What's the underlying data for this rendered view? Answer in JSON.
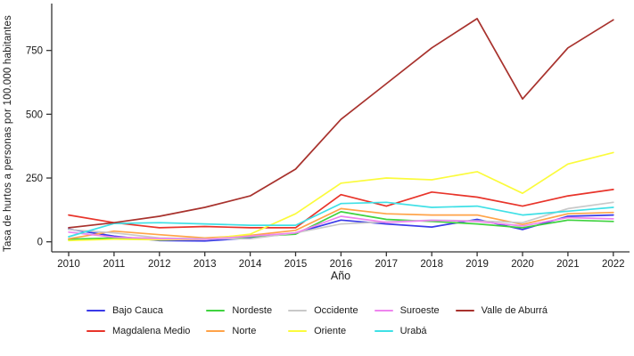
{
  "page": {
    "background": "#FFFFFF",
    "axis_color": "#333333",
    "text_color": "#1A1A1A"
  },
  "chart_data": {
    "type": "line",
    "title": "",
    "xlabel": "Año",
    "ylabel": "Tasa de hurtos a personas por 100.000 habitantes",
    "x": [
      2010,
      2011,
      2012,
      2013,
      2014,
      2015,
      2016,
      2017,
      2018,
      2019,
      2020,
      2021,
      2022
    ],
    "x_tick_labels": [
      "2010",
      "2011",
      "2012",
      "2013",
      "2014",
      "2015",
      "2016",
      "2017",
      "2018",
      "2019",
      "2020",
      "2021",
      "2022"
    ],
    "yticks": [
      0,
      250,
      500,
      750
    ],
    "ylim": [
      0,
      900
    ],
    "grid": false,
    "legend_position": "bottom",
    "legend_rows": 2,
    "series": [
      {
        "name": "Bajo Cauca",
        "color": "#3A3AE8",
        "values": [
          50,
          22,
          5,
          3,
          15,
          35,
          85,
          70,
          58,
          88,
          48,
          100,
          105
        ]
      },
      {
        "name": "Magdalena Medio",
        "color": "#E8342A",
        "values": [
          105,
          75,
          55,
          60,
          55,
          55,
          185,
          140,
          195,
          175,
          140,
          180,
          205
        ]
      },
      {
        "name": "Nordeste",
        "color": "#3FD23F",
        "values": [
          10,
          15,
          8,
          10,
          20,
          30,
          118,
          88,
          80,
          70,
          55,
          85,
          80
        ]
      },
      {
        "name": "Norte",
        "color": "#FFA348",
        "values": [
          12,
          42,
          28,
          15,
          25,
          45,
          130,
          110,
          105,
          105,
          68,
          110,
          115
        ]
      },
      {
        "name": "Occidente",
        "color": "#C9C9C9",
        "values": [
          48,
          35,
          15,
          12,
          12,
          35,
          70,
          78,
          85,
          82,
          75,
          130,
          155
        ]
      },
      {
        "name": "Oriente",
        "color": "#FBFB3C",
        "values": [
          5,
          10,
          8,
          10,
          30,
          110,
          230,
          250,
          243,
          275,
          190,
          305,
          350
        ]
      },
      {
        "name": "Suroeste",
        "color": "#EE85EE",
        "values": [
          38,
          18,
          13,
          10,
          22,
          35,
          100,
          76,
          84,
          80,
          62,
          95,
          90
        ]
      },
      {
        "name": "Urabá",
        "color": "#3FE0E6",
        "values": [
          20,
          72,
          75,
          70,
          65,
          65,
          150,
          155,
          135,
          140,
          105,
          120,
          135
        ]
      },
      {
        "name": "Valle de Aburrá",
        "color": "#A8322D",
        "values": [
          55,
          75,
          100,
          135,
          180,
          285,
          480,
          620,
          760,
          875,
          560,
          760,
          870
        ]
      }
    ]
  }
}
